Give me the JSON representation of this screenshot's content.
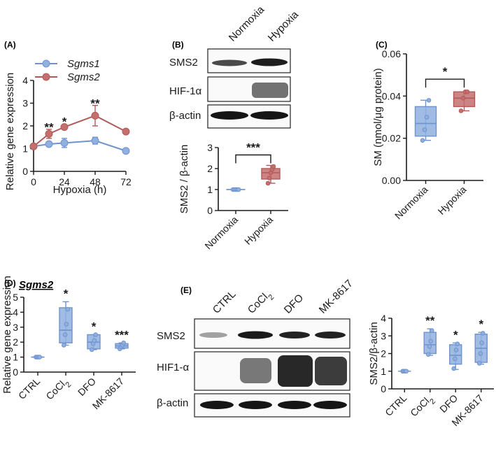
{
  "colors": {
    "blue": "#6f93cc",
    "blue_fill": "#8fb0e0",
    "red": "#b05a5a",
    "red_fill": "#c46e6e",
    "axis": "#1a1a1a"
  },
  "panels": {
    "A": "(A)",
    "B": "(B)",
    "C": "(C)",
    "D": "(D)",
    "E": "(E)",
    "D_gene": "Sgms2"
  },
  "blot_B": {
    "lanes": [
      "Normoxia",
      "Hypoxia"
    ],
    "rows": [
      "SMS2",
      "HIF-1α",
      "β-actin"
    ]
  },
  "blot_E": {
    "lanes": [
      "CTRL",
      "CoCl2",
      "DFO",
      "MK-8617"
    ],
    "rows": [
      "SMS2",
      "HIF1-α",
      "β-actin"
    ]
  },
  "chart_data": [
    {
      "id": "A",
      "type": "line",
      "xlabel": "Hypoxia (h)",
      "ylabel": "Relative gene expression",
      "xlim": [
        0,
        72
      ],
      "ylim": [
        0,
        4
      ],
      "xticks": [
        0,
        24,
        48,
        72
      ],
      "yticks": [
        0,
        1,
        2,
        3,
        4
      ],
      "legend": "top-left",
      "series": [
        {
          "name": "Sgms1",
          "x": [
            0,
            12,
            24,
            48,
            72
          ],
          "values": [
            1.1,
            1.2,
            1.25,
            1.35,
            0.9
          ],
          "err": [
            0.05,
            0.08,
            0.2,
            0.15,
            0.05
          ]
        },
        {
          "name": "Sgms2",
          "x": [
            0,
            12,
            24,
            48,
            72
          ],
          "values": [
            1.1,
            1.65,
            1.95,
            2.45,
            1.75
          ],
          "err": [
            0.1,
            0.2,
            0.05,
            0.45,
            0.05
          ]
        }
      ],
      "annotations": [
        {
          "x": 12,
          "y": 1.95,
          "text": "**"
        },
        {
          "x": 24,
          "y": 2.2,
          "text": "*"
        },
        {
          "x": 48,
          "y": 3.0,
          "text": "**"
        }
      ]
    },
    {
      "id": "B",
      "type": "box",
      "ylabel": "SMS2 / β-actin",
      "ylim": [
        0,
        3
      ],
      "yticks": [
        0,
        1,
        2,
        3
      ],
      "categories": [
        "Normoxia",
        "Hypoxia"
      ],
      "boxes": [
        {
          "min": 1.0,
          "q1": 1.0,
          "median": 1.0,
          "q3": 1.0,
          "max": 1.0,
          "points": [
            1,
            1,
            1,
            1,
            1
          ]
        },
        {
          "min": 1.3,
          "q1": 1.5,
          "median": 1.8,
          "q3": 2.0,
          "max": 2.15,
          "points": [
            1.3,
            1.55,
            1.8,
            1.95,
            2.1
          ]
        }
      ],
      "bracket": {
        "from": 0,
        "to": 1,
        "y": 2.65,
        "text": "***"
      }
    },
    {
      "id": "C",
      "type": "box",
      "ylabel": "SM (nmol/μg protein)",
      "ylim": [
        0,
        0.06
      ],
      "yticks": [
        0.0,
        0.02,
        0.04,
        0.06
      ],
      "ytick_labels": [
        "0.00",
        "0.02",
        "0.04",
        "0.06"
      ],
      "categories": [
        "Normoxia",
        "Hypoxia"
      ],
      "boxes": [
        {
          "min": 0.019,
          "q1": 0.021,
          "median": 0.027,
          "q3": 0.035,
          "max": 0.038,
          "points": [
            0.019,
            0.024,
            0.03,
            0.038
          ]
        },
        {
          "min": 0.033,
          "q1": 0.035,
          "median": 0.039,
          "q3": 0.042,
          "max": 0.042,
          "points": [
            0.033,
            0.039,
            0.042,
            0.042
          ]
        }
      ],
      "bracket": {
        "from": 0,
        "to": 1,
        "y": 0.048,
        "text": "*"
      }
    },
    {
      "id": "D",
      "type": "box",
      "ylabel": "Relative gene expression",
      "ylim": [
        0,
        5
      ],
      "yticks": [
        0,
        1,
        2,
        3,
        4,
        5
      ],
      "categories": [
        "CTRL",
        "CoCl2",
        "DFO",
        "MK-8617"
      ],
      "boxes": [
        {
          "min": 1.0,
          "q1": 1.0,
          "median": 1.0,
          "q3": 1.0,
          "max": 1.0,
          "points": [
            1,
            1,
            1,
            1
          ]
        },
        {
          "min": 1.8,
          "q1": 1.95,
          "median": 2.8,
          "q3": 4.3,
          "max": 4.7,
          "points": [
            1.8,
            2.5,
            3.2,
            4.2
          ]
        },
        {
          "min": 1.5,
          "q1": 1.55,
          "median": 2.0,
          "q3": 2.5,
          "max": 2.5,
          "points": [
            1.5,
            1.9,
            2.1,
            2.5
          ]
        },
        {
          "min": 1.55,
          "q1": 1.6,
          "median": 1.75,
          "q3": 1.9,
          "max": 1.95,
          "points": [
            1.55,
            1.7,
            1.8,
            1.95
          ]
        }
      ],
      "sig": [
        "",
        "*",
        "*",
        "***"
      ]
    },
    {
      "id": "E",
      "type": "box",
      "ylabel": "SMS2/β-actin",
      "ylim": [
        0,
        4
      ],
      "yticks": [
        0,
        1,
        2,
        3,
        4
      ],
      "categories": [
        "CTRL",
        "CoCl2",
        "DFO",
        "MK-8617"
      ],
      "boxes": [
        {
          "min": 1.0,
          "q1": 1.0,
          "median": 1.0,
          "q3": 1.0,
          "max": 1.0,
          "points": [
            1,
            1,
            1,
            1
          ]
        },
        {
          "min": 1.9,
          "q1": 2.0,
          "median": 2.5,
          "q3": 3.2,
          "max": 3.4,
          "points": [
            1.95,
            2.4,
            2.7,
            3.3
          ]
        },
        {
          "min": 1.1,
          "q1": 1.4,
          "median": 1.9,
          "q3": 2.5,
          "max": 2.6,
          "points": [
            1.15,
            1.7,
            2.2,
            2.55
          ]
        },
        {
          "min": 1.4,
          "q1": 1.5,
          "median": 2.3,
          "q3": 3.1,
          "max": 3.2,
          "points": [
            1.45,
            2.0,
            2.6,
            3.15
          ]
        }
      ],
      "sig": [
        "",
        "**",
        "*",
        "*"
      ]
    }
  ]
}
